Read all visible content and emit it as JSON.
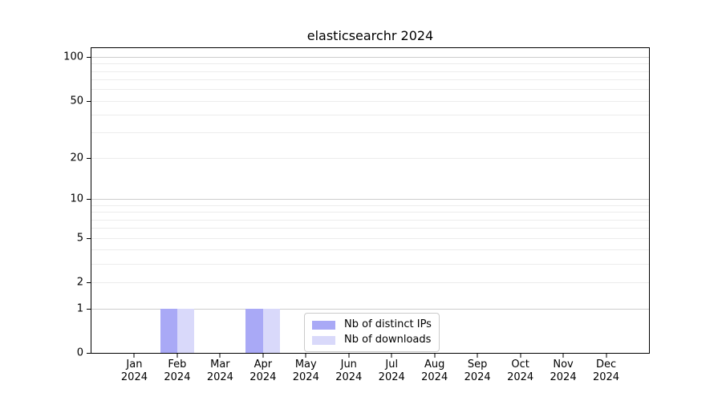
{
  "chart_data": {
    "type": "bar",
    "title": "elasticsearchr 2024",
    "categories": [
      "Jan",
      "Feb",
      "Mar",
      "Apr",
      "May",
      "Jun",
      "Jul",
      "Aug",
      "Sep",
      "Oct",
      "Nov",
      "Dec"
    ],
    "category_year": "2024",
    "series": [
      {
        "name": "Nb of distinct IPs",
        "color": "#a9a9f6",
        "values": [
          0,
          1,
          0,
          1,
          0,
          0,
          0,
          0,
          0,
          0,
          0,
          0
        ]
      },
      {
        "name": "Nb of downloads",
        "color": "#d9d9fa",
        "values": [
          0,
          1,
          0,
          1,
          0,
          0,
          0,
          0,
          0,
          0,
          0,
          0
        ]
      }
    ],
    "yscale": "log1p",
    "ylim": [
      0,
      115
    ],
    "xlim_units": [
      0,
      13
    ],
    "ytick_values": [
      0,
      1,
      2,
      5,
      10,
      20,
      50,
      100
    ],
    "grid": {
      "major_values": [
        1,
        10,
        100
      ],
      "minor_values": [
        2,
        3,
        4,
        5,
        6,
        7,
        8,
        9,
        20,
        30,
        40,
        50,
        60,
        70,
        80,
        90
      ],
      "major_color": "#cdcdcd",
      "minor_color": "#ececec"
    },
    "bar_width_units": 0.4,
    "legend_position": "inside-bottom",
    "colors": {
      "axis": "#000000",
      "background": "#ffffff",
      "text": "#000000"
    }
  }
}
